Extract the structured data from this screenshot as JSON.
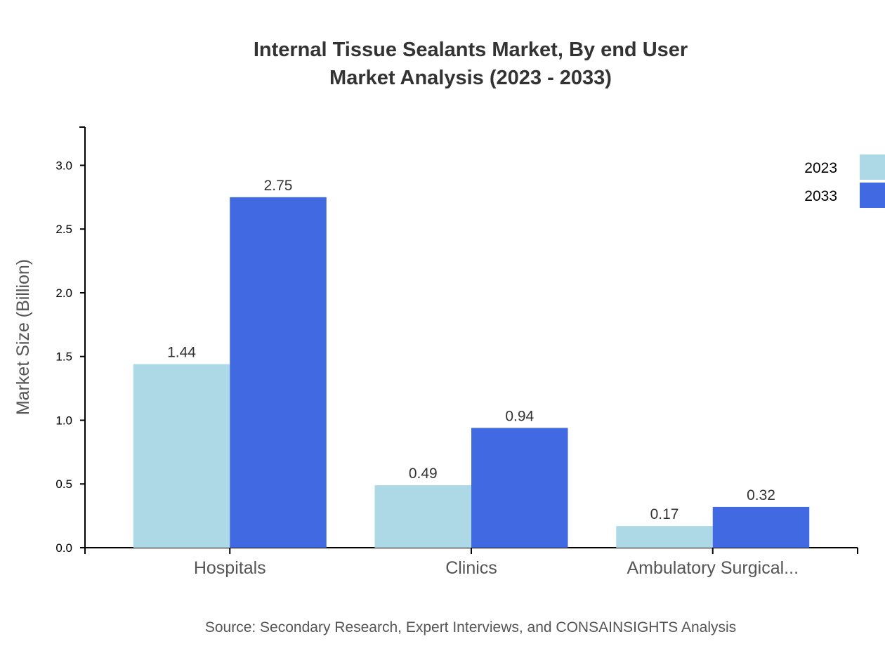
{
  "chart_data": {
    "type": "bar",
    "title": "Internal Tissue Sealants Market, By end User",
    "subtitle": "Market Analysis (2023 - 2033)",
    "xlabel": "",
    "ylabel": "Market Size (Billion)",
    "categories": [
      "Hospitals",
      "Clinics",
      "Ambulatory Surgical..."
    ],
    "series": [
      {
        "name": "2023",
        "values": [
          1.44,
          0.49,
          0.17
        ],
        "color": "#ADD8E6"
      },
      {
        "name": "2033",
        "values": [
          2.75,
          0.94,
          0.32
        ],
        "color": "#4169E1"
      }
    ],
    "ylim": [
      0,
      3.3
    ],
    "yticks": [
      "0.0",
      "0.5",
      "1.0",
      "1.5",
      "2.0",
      "2.5",
      "3.0"
    ],
    "grid": false,
    "legend": "top-right",
    "source": "Source: Secondary Research, Expert Interviews, and CONSAINSIGHTS Analysis"
  }
}
